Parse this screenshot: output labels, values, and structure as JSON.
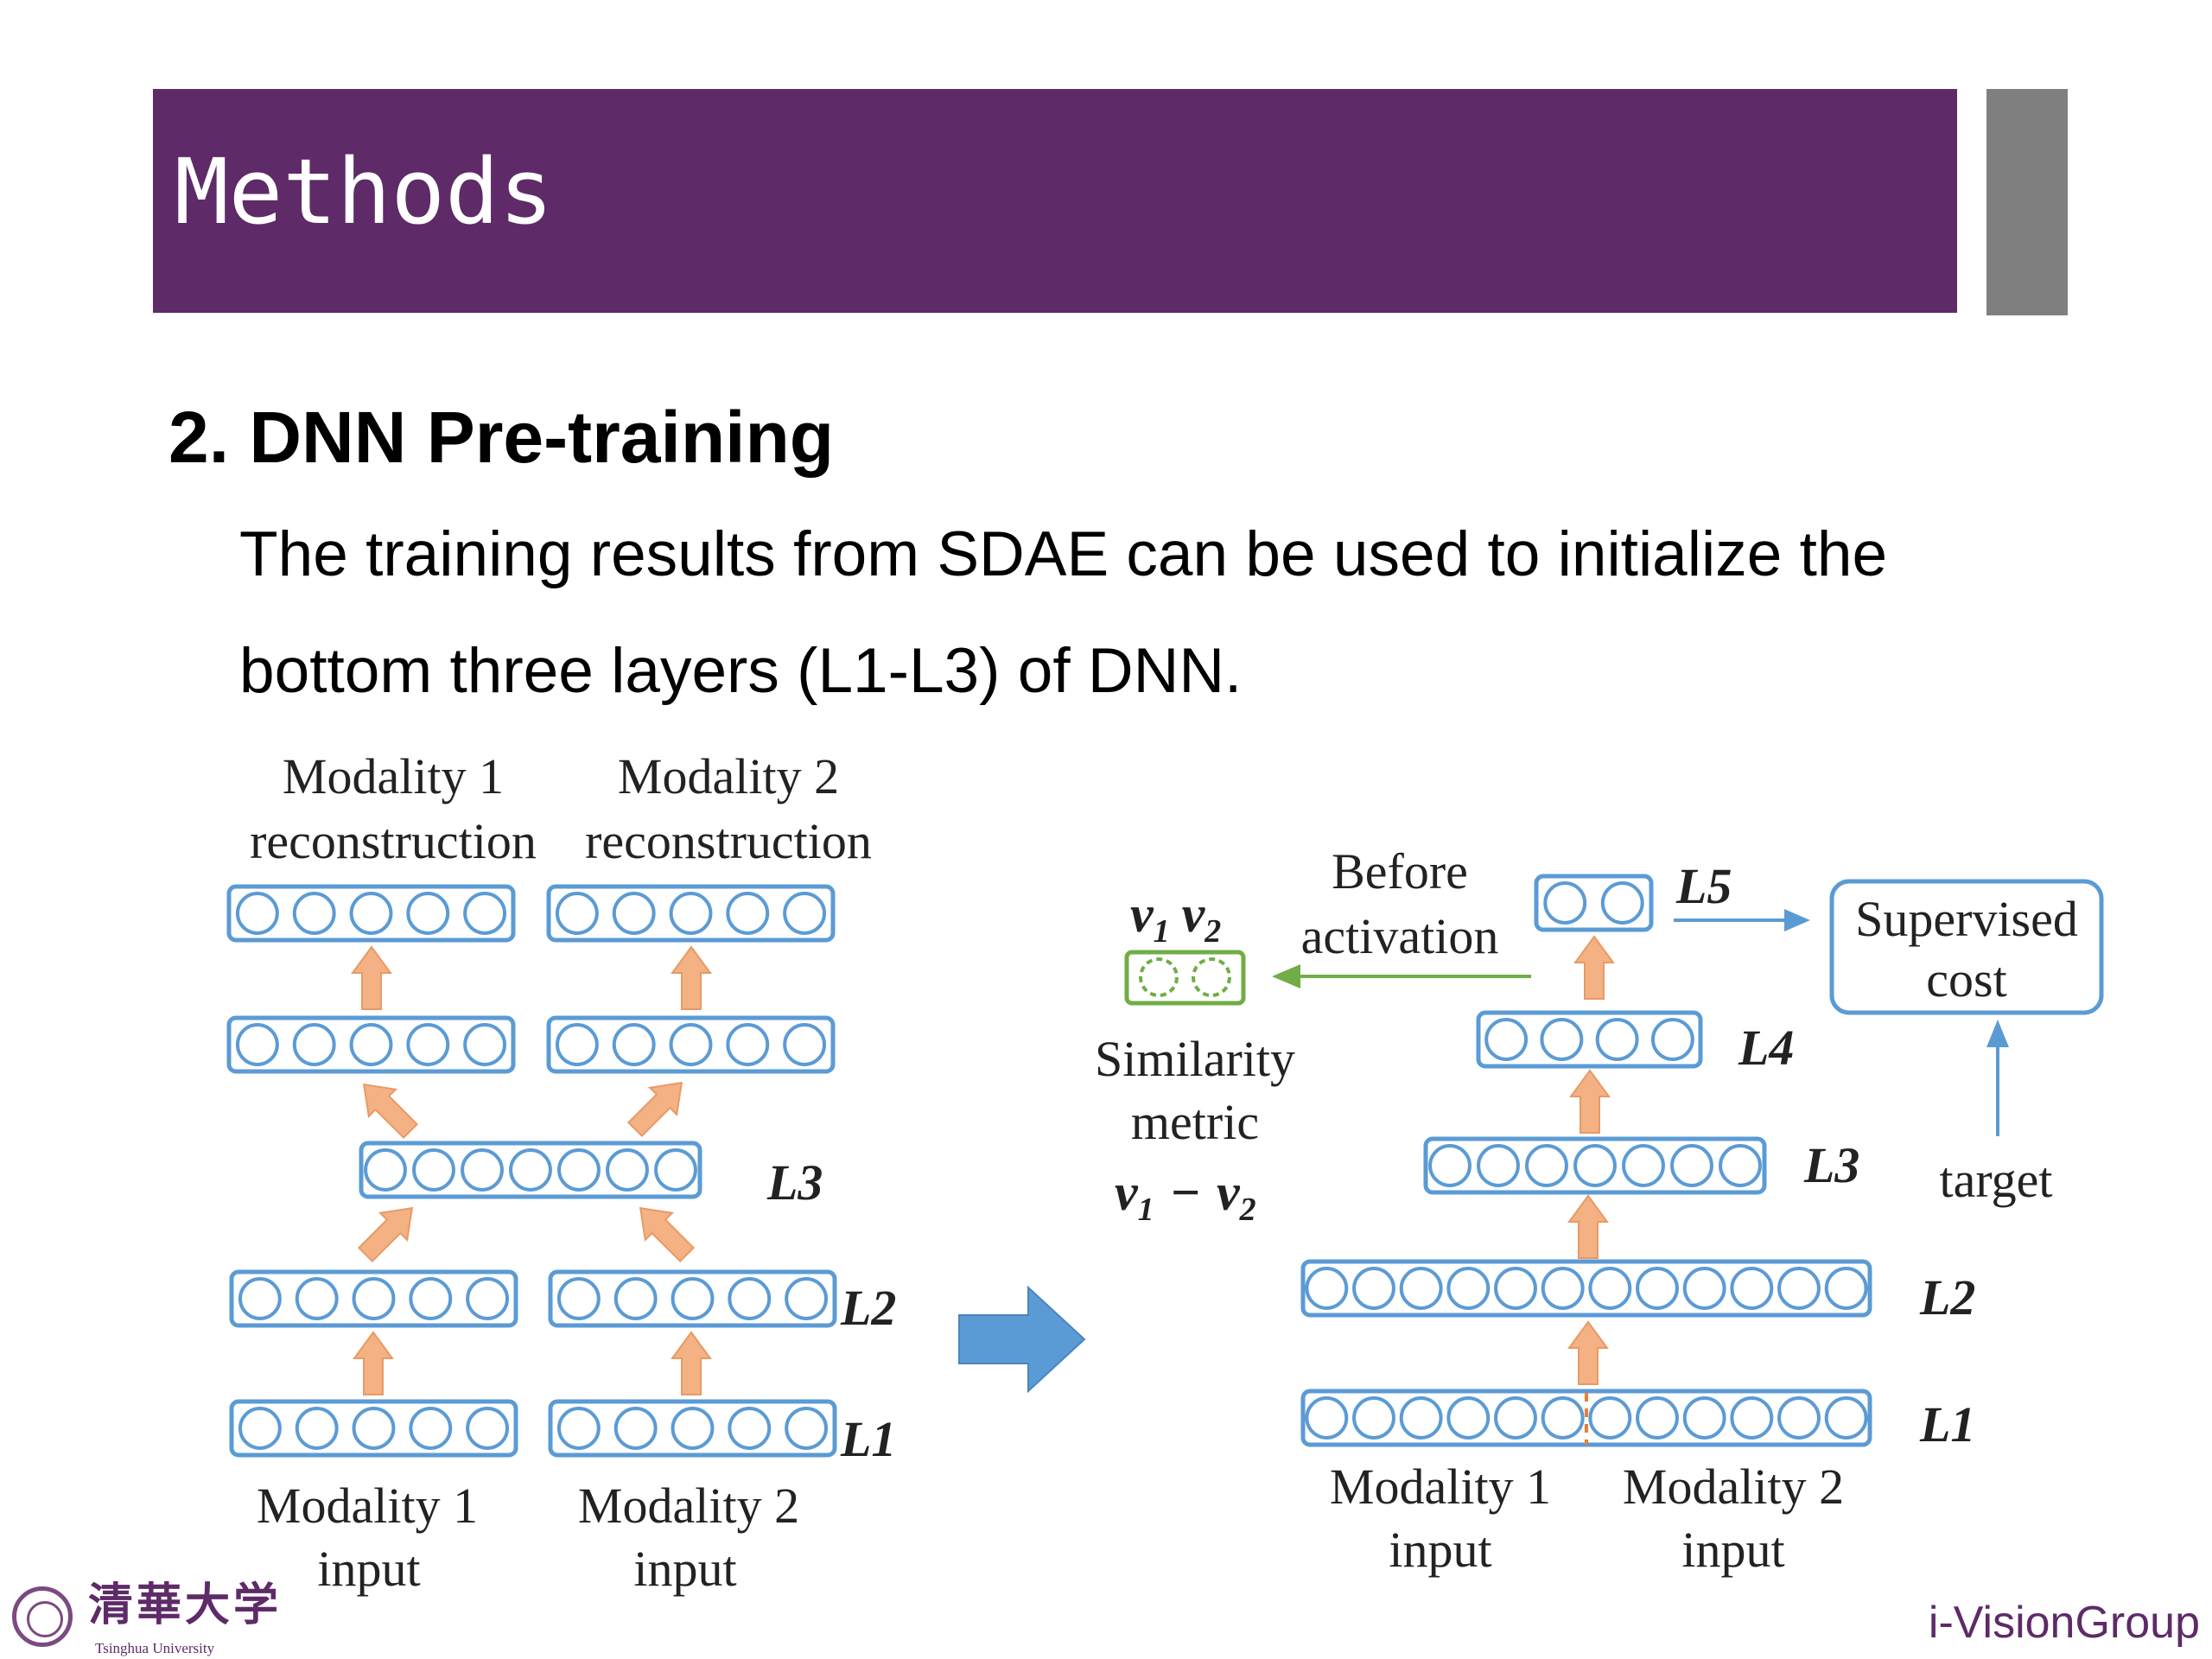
{
  "header": {
    "title": "Methods"
  },
  "section": {
    "heading": "2. DNN Pre-training",
    "body_lines": [
      "The training results from SDAE can be used to initialize the",
      "bottom three layers (L1-L3) of DNN."
    ]
  },
  "diagram": {
    "left": {
      "recon_labels": [
        [
          "Modality 1",
          "reconstruction"
        ],
        [
          "Modality 2",
          "reconstruction"
        ]
      ],
      "input_labels": [
        [
          "Modality 1",
          "input"
        ],
        [
          "Modality 2",
          "input"
        ]
      ],
      "layer_labels": {
        "L3": "L3",
        "L2": "L2",
        "L1": "L1"
      }
    },
    "right": {
      "layer_labels": {
        "L5": "L5",
        "L4": "L4",
        "L3": "L3",
        "L2": "L2",
        "L1": "L1"
      },
      "before_activation": [
        "Before",
        "activation"
      ],
      "supervised_cost": [
        "Supervised",
        "cost"
      ],
      "target": "target",
      "v_labels": {
        "v": "v",
        "sub1": "1",
        "sub2": "2",
        "minus": "−"
      },
      "similarity": [
        "Similarity",
        "metric"
      ],
      "input_labels": [
        [
          "Modality 1",
          "input"
        ],
        [
          "Modality 2",
          "input"
        ]
      ]
    }
  },
  "footer": {
    "logo_text": "清華大学",
    "logo_subtitle": "Tsinghua University",
    "brand": "i-VisionGroup"
  },
  "colors": {
    "title_bar": "#5e2a68",
    "gray_block": "#7f7f7f",
    "node_blue": "#5b9bd5",
    "arrow_orange": "#f4b183",
    "big_arrow": "#5b9bd5",
    "green": "#70ad47",
    "dashed_orange": "#ed7d31"
  }
}
